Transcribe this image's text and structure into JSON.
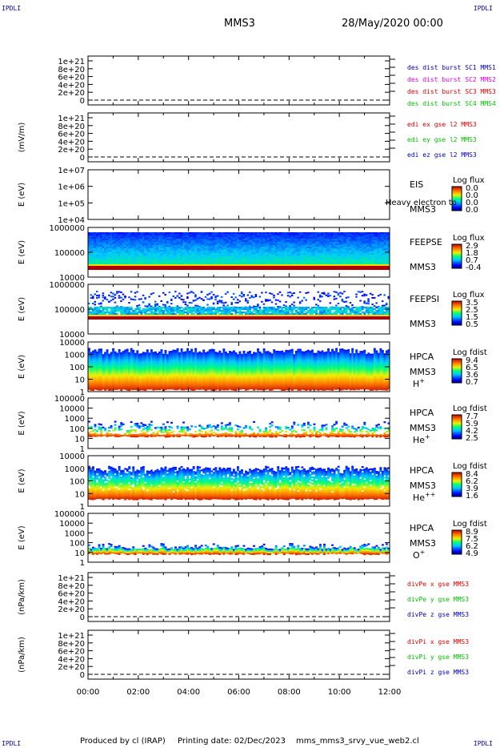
{
  "corner_left": "IPDLI",
  "corner_right": "IPDLI",
  "header": {
    "mission": "MMS3",
    "date": "28/May/2020 00:00"
  },
  "footer": {
    "produced": "Produced by cl (IRAP)",
    "printing": "Printing date: 02/Dec/2023",
    "script": "mms_mms3_srvy_vue_web2.cl"
  },
  "overlap_text": "Heavy electron to",
  "colors": {
    "red": "#e00000",
    "green": "#00c000",
    "blue": "#0000c0",
    "magenta": "#e000e0"
  },
  "chart_data": [
    {
      "type": "line",
      "id": "p1",
      "ylabel": "",
      "yticks": [
        "1e+21",
        "8e+20",
        "6e+20",
        "4e+20",
        "2e+20",
        "0"
      ],
      "legend": [
        {
          "text": "des dist burst SC1 MMS1",
          "color": "#0000c0"
        },
        {
          "text": "des dist burst SC2 MMS2",
          "color": "#e000e0"
        },
        {
          "text": "des dist burst SC3 MMS3",
          "color": "#e00000"
        },
        {
          "text": "des dist burst SC4 MMS4",
          "color": "#00c000"
        }
      ],
      "values": "no data (dashed zero line)"
    },
    {
      "type": "line",
      "id": "p2",
      "ylabel": "(mV/m)",
      "yticks": [
        "1e+21",
        "8e+20",
        "6e+20",
        "4e+20",
        "2e+20",
        "0"
      ],
      "legend": [
        {
          "text": "edi ex gse l2 MMS3",
          "color": "#e00000"
        },
        {
          "text": "edi ey gse l2 MMS3",
          "color": "#00c000"
        },
        {
          "text": "edi ez gse l2 MMS3",
          "color": "#0000c0"
        }
      ]
    },
    {
      "type": "heatmap",
      "id": "p3",
      "ylabel": "E (eV)",
      "yticks": [
        "1e+07",
        "1e+06",
        "1e+05",
        "1e+04"
      ],
      "instrument": "EIS",
      "spacecraft": "MMS3",
      "cbar_title": "Log flux",
      "cbar_ticks": [
        "0.0",
        "0.0",
        "0.0",
        "0.0"
      ]
    },
    {
      "type": "heatmap",
      "id": "p4",
      "ylabel": "E (eV)",
      "yticks": [
        "1000000",
        "100000",
        "10000"
      ],
      "instrument": "FEEPSE",
      "spacecraft": "MMS3",
      "cbar_title": "Log flux",
      "cbar_ticks": [
        "2.9",
        "1.8",
        "0.7",
        "-0.4"
      ]
    },
    {
      "type": "heatmap",
      "id": "p5",
      "ylabel": "E (eV)",
      "yticks": [
        "1000000",
        "100000",
        "10000"
      ],
      "instrument": "FEEPSI",
      "spacecraft": "MMS3",
      "cbar_title": "Log flux",
      "cbar_ticks": [
        "3.5",
        "2.5",
        "1.5",
        "0.5"
      ]
    },
    {
      "type": "heatmap",
      "id": "p6",
      "ylabel": "E (eV)",
      "yticks": [
        "10000",
        "1000",
        "100",
        "10",
        "1"
      ],
      "instrument": "HPCA",
      "spacecraft": "MMS3",
      "species": "H",
      "charge": "+",
      "cbar_title": "Log fdist",
      "cbar_ticks": [
        "9.4",
        "6.5",
        "3.6",
        "0.7"
      ]
    },
    {
      "type": "heatmap",
      "id": "p7",
      "ylabel": "E (eV)",
      "yticks": [
        "100000",
        "10000",
        "1000",
        "100",
        "10",
        "1"
      ],
      "instrument": "HPCA",
      "spacecraft": "MMS3",
      "species": "He",
      "charge": "+",
      "cbar_title": "Log fdist",
      "cbar_ticks": [
        "7.7",
        "5.9",
        "4.2",
        "2.5"
      ]
    },
    {
      "type": "heatmap",
      "id": "p8",
      "ylabel": "E (eV)",
      "yticks": [
        "10000",
        "1000",
        "100",
        "10",
        "1"
      ],
      "instrument": "HPCA",
      "spacecraft": "MMS3",
      "species": "He",
      "charge": "++",
      "cbar_title": "Log fdist",
      "cbar_ticks": [
        "8.4",
        "6.2",
        "3.9",
        "1.6"
      ]
    },
    {
      "type": "heatmap",
      "id": "p9",
      "ylabel": "E (eV)",
      "yticks": [
        "100000",
        "10000",
        "1000",
        "100",
        "10",
        "1"
      ],
      "instrument": "HPCA",
      "spacecraft": "MMS3",
      "species": "O",
      "charge": "+",
      "cbar_title": "Log fdist",
      "cbar_ticks": [
        "8.9",
        "7.5",
        "6.2",
        "4.9"
      ]
    },
    {
      "type": "line",
      "id": "p10",
      "ylabel": "(nPa/km)",
      "yticks": [
        "1e+21",
        "8e+20",
        "6e+20",
        "4e+20",
        "2e+20",
        "0"
      ],
      "legend": [
        {
          "text": "divPe x gse MMS3",
          "color": "#e00000"
        },
        {
          "text": "divPe y gse MMS3",
          "color": "#00c000"
        },
        {
          "text": "divPe z gse MMS3",
          "color": "#0000c0"
        }
      ]
    },
    {
      "type": "line",
      "id": "p11",
      "ylabel": "(nPa/km)",
      "yticks": [
        "1e+21",
        "8e+20",
        "6e+20",
        "4e+20",
        "2e+20",
        "0"
      ],
      "legend": [
        {
          "text": "divPi x gse MMS3",
          "color": "#e00000"
        },
        {
          "text": "divPi y gse MMS3",
          "color": "#00c000"
        },
        {
          "text": "divPi z gse MMS3",
          "color": "#0000c0"
        }
      ]
    }
  ],
  "time_axis": {
    "ticks": [
      "00:00",
      "02:00",
      "04:00",
      "06:00",
      "08:00",
      "10:00",
      "12:00"
    ],
    "range_hours": [
      0,
      12
    ]
  }
}
